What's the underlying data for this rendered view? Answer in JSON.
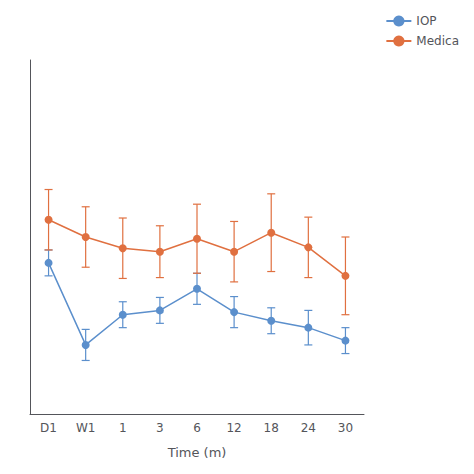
{
  "chart_data": {
    "type": "line",
    "xlabel": "Time (m)",
    "categories": [
      "D1",
      "W1",
      "1",
      "3",
      "6",
      "12",
      "18",
      "24",
      "30"
    ],
    "series": [
      {
        "name": "IOP",
        "color": "#5B8FCC",
        "marker": "circle",
        "line_style": "solid",
        "values": [
          22.5,
          13.0,
          16.5,
          17.0,
          19.5,
          16.8,
          15.8,
          15.0,
          13.5
        ],
        "errors": [
          1.5,
          1.8,
          1.5,
          1.5,
          1.8,
          1.8,
          1.5,
          2.0,
          1.5
        ]
      },
      {
        "name": "Medica",
        "color": "#E07040",
        "marker": "circle",
        "line_style": "solid",
        "values": [
          27.5,
          25.5,
          24.2,
          23.8,
          25.3,
          23.8,
          26.0,
          24.3,
          21.0
        ],
        "errors": [
          3.5,
          3.5,
          3.5,
          3.0,
          4.0,
          3.5,
          4.5,
          3.5,
          4.5
        ]
      }
    ],
    "ylim": [
      5,
      46
    ],
    "tick_labels": "x",
    "grid": false,
    "legend": "upper right"
  }
}
